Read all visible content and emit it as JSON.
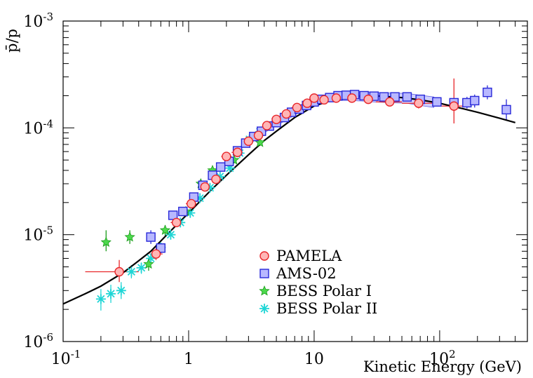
{
  "chart_data": {
    "type": "scatter",
    "title": "",
    "xlabel": "Kinetic Energy (GeV)",
    "ylabel": "p̄/p",
    "x_scale": "log",
    "y_scale": "log",
    "xlim": [
      0.1,
      500
    ],
    "ylim": [
      1e-06,
      0.001
    ],
    "grid": false,
    "legend_position": "lower-center",
    "x_ticks": [
      {
        "value": 0.1,
        "label": "10",
        "exp": "-1"
      },
      {
        "value": 1,
        "label": "1",
        "exp": ""
      },
      {
        "value": 10,
        "label": "10",
        "exp": ""
      },
      {
        "value": 100,
        "label": "10",
        "exp": "2"
      }
    ],
    "y_ticks": [
      {
        "value": 1e-06,
        "label": "10",
        "exp": "-6"
      },
      {
        "value": 1e-05,
        "label": "10",
        "exp": "-5"
      },
      {
        "value": 0.0001,
        "label": "10",
        "exp": "-4"
      },
      {
        "value": 0.001,
        "label": "10",
        "exp": "-3"
      }
    ],
    "model_curve": {
      "color": "#000000",
      "x": [
        0.1,
        0.15,
        0.2,
        0.3,
        0.4,
        0.5,
        0.7,
        1.0,
        1.5,
        2.0,
        3.0,
        4.0,
        5.0,
        7.0,
        10,
        15,
        20,
        30,
        50,
        70,
        100,
        150,
        200,
        300,
        400
      ],
      "y": [
        2.25e-06,
        2.8e-06,
        3.3e-06,
        4.4e-06,
        5.7e-06,
        7e-06,
        1.05e-05,
        1.6e-05,
        2.6e-05,
        3.6e-05,
        5.6e-05,
        7.6e-05,
        9.3e-05,
        0.000125,
        0.00016,
        0.000187,
        0.000197,
        0.0002,
        0.000192,
        0.000183,
        0.00017,
        0.000152,
        0.00014,
        0.000123,
        0.000112
      ]
    },
    "series": [
      {
        "name": "PAMELA",
        "marker": "circle",
        "color": "#e8262a",
        "fill": "#ffb6b6",
        "points": [
          {
            "x": 0.28,
            "y": 4.5e-06,
            "xlo": 0.15,
            "xhi": 0.4,
            "ylo": 3.6e-06,
            "yhi": 5.8e-06
          },
          {
            "x": 0.55,
            "y": 6.6e-06,
            "xlo": 0.49,
            "xhi": 0.62,
            "ylo": 5.8e-06,
            "yhi": 7.6e-06
          },
          {
            "x": 0.8,
            "y": 1.3e-05,
            "xlo": 0.72,
            "xhi": 0.88,
            "ylo": 1.18e-05,
            "yhi": 1.43e-05
          },
          {
            "x": 1.05,
            "y": 1.95e-05,
            "xlo": 0.95,
            "xhi": 1.15,
            "ylo": 1.8e-05,
            "yhi": 2.1e-05
          },
          {
            "x": 1.35,
            "y": 2.8e-05,
            "xlo": 1.22,
            "xhi": 1.5,
            "ylo": 2.6e-05,
            "yhi": 3e-05
          },
          {
            "x": 1.65,
            "y": 3.3e-05,
            "xlo": 1.5,
            "xhi": 1.82,
            "ylo": 3.1e-05,
            "yhi": 3.5e-05
          },
          {
            "x": 2.0,
            "y": 5.4e-05,
            "xlo": 1.82,
            "xhi": 2.2,
            "ylo": 5e-05,
            "yhi": 5.8e-05
          },
          {
            "x": 2.45,
            "y": 5.9e-05,
            "xlo": 2.2,
            "xhi": 2.7,
            "ylo": 5.5e-05,
            "yhi": 6.3e-05
          },
          {
            "x": 3.0,
            "y": 7.5e-05,
            "xlo": 2.7,
            "xhi": 3.3,
            "ylo": 7.1e-05,
            "yhi": 7.9e-05
          },
          {
            "x": 3.6,
            "y": 8.5e-05,
            "xlo": 3.3,
            "xhi": 3.9,
            "ylo": 8.1e-05,
            "yhi": 8.9e-05
          },
          {
            "x": 4.2,
            "y": 0.000105,
            "xlo": 3.9,
            "xhi": 4.6,
            "ylo": 0.0001,
            "yhi": 0.00011
          },
          {
            "x": 5.0,
            "y": 0.00012,
            "xlo": 4.6,
            "xhi": 5.5,
            "ylo": 0.000115,
            "yhi": 0.000125
          },
          {
            "x": 6.0,
            "y": 0.000135,
            "xlo": 5.5,
            "xhi": 6.6,
            "ylo": 0.000129,
            "yhi": 0.000141
          },
          {
            "x": 7.3,
            "y": 0.000155,
            "xlo": 6.6,
            "xhi": 8.0,
            "ylo": 0.000148,
            "yhi": 0.000162
          },
          {
            "x": 8.8,
            "y": 0.00017,
            "xlo": 8.0,
            "xhi": 9.7,
            "ylo": 0.000162,
            "yhi": 0.000178
          },
          {
            "x": 10.0,
            "y": 0.00019,
            "xlo": 9.7,
            "xhi": 10.8,
            "ylo": 0.000182,
            "yhi": 0.000198
          },
          {
            "x": 12.0,
            "y": 0.000183,
            "xlo": 10.8,
            "xhi": 13.5,
            "ylo": 0.000174,
            "yhi": 0.000192
          },
          {
            "x": 15.0,
            "y": 0.00019,
            "xlo": 13.5,
            "xhi": 17.0,
            "ylo": 0.00018,
            "yhi": 0.0002
          },
          {
            "x": 20.0,
            "y": 0.00019,
            "xlo": 17.0,
            "xhi": 23.0,
            "ylo": 0.000179,
            "yhi": 0.000201
          },
          {
            "x": 27.0,
            "y": 0.000185,
            "xlo": 23.0,
            "xhi": 31.0,
            "ylo": 0.000173,
            "yhi": 0.000197
          },
          {
            "x": 40.0,
            "y": 0.000175,
            "xlo": 31.0,
            "xhi": 50.0,
            "ylo": 0.000162,
            "yhi": 0.000189
          },
          {
            "x": 68.0,
            "y": 0.00017,
            "xlo": 50.0,
            "xhi": 90.0,
            "ylo": 0.000152,
            "yhi": 0.00019
          },
          {
            "x": 130.0,
            "y": 0.00016,
            "xlo": 100.0,
            "xhi": 170.0,
            "ylo": 0.00011,
            "yhi": 0.00029
          }
        ]
      },
      {
        "name": "AMS-02",
        "marker": "square",
        "color": "#2828d8",
        "fill": "#b8b8ff",
        "points": [
          {
            "x": 0.5,
            "y": 9.5e-06,
            "ylo": 8.2e-06,
            "yhi": 1.1e-05
          },
          {
            "x": 0.6,
            "y": 7.5e-06,
            "ylo": 6.7e-06,
            "yhi": 8.4e-06
          },
          {
            "x": 0.75,
            "y": 1.52e-05,
            "ylo": 1.4e-05,
            "yhi": 1.65e-05
          },
          {
            "x": 0.9,
            "y": 1.65e-05,
            "ylo": 1.53e-05,
            "yhi": 1.77e-05
          },
          {
            "x": 1.1,
            "y": 2.25e-05,
            "ylo": 2.12e-05,
            "yhi": 2.38e-05
          },
          {
            "x": 1.3,
            "y": 2.9e-05,
            "ylo": 2.75e-05,
            "yhi": 3.05e-05
          },
          {
            "x": 1.55,
            "y": 3.6e-05,
            "ylo": 3.45e-05,
            "yhi": 3.75e-05
          },
          {
            "x": 1.8,
            "y": 4.3e-05,
            "ylo": 4.15e-05,
            "yhi": 4.45e-05
          },
          {
            "x": 2.1,
            "y": 4.85e-05,
            "ylo": 4.7e-05,
            "yhi": 5e-05
          },
          {
            "x": 2.45,
            "y": 6.1e-05,
            "ylo": 5.9e-05,
            "yhi": 6.3e-05
          },
          {
            "x": 2.85,
            "y": 7.2e-05,
            "ylo": 7e-05,
            "yhi": 7.4e-05
          },
          {
            "x": 3.3,
            "y": 8.3e-05,
            "ylo": 8.1e-05,
            "yhi": 8.5e-05
          },
          {
            "x": 3.8,
            "y": 9.3e-05,
            "ylo": 9.1e-05,
            "yhi": 9.5e-05
          },
          {
            "x": 4.4,
            "y": 0.000104,
            "ylo": 0.000102,
            "yhi": 0.000106
          },
          {
            "x": 5.0,
            "y": 0.000112,
            "ylo": 0.00011,
            "yhi": 0.000114
          },
          {
            "x": 5.8,
            "y": 0.000125,
            "ylo": 0.000122,
            "yhi": 0.000128
          },
          {
            "x": 6.6,
            "y": 0.00014,
            "ylo": 0.000137,
            "yhi": 0.000143
          },
          {
            "x": 7.6,
            "y": 0.00015,
            "ylo": 0.000147,
            "yhi": 0.000153
          },
          {
            "x": 8.7,
            "y": 0.000162,
            "ylo": 0.000158,
            "yhi": 0.000166
          },
          {
            "x": 10.0,
            "y": 0.000175,
            "ylo": 0.000171,
            "yhi": 0.000179
          },
          {
            "x": 11.5,
            "y": 0.000185,
            "ylo": 0.000181,
            "yhi": 0.000189
          },
          {
            "x": 13.3,
            "y": 0.000192,
            "ylo": 0.000187,
            "yhi": 0.000197
          },
          {
            "x": 15.5,
            "y": 0.0002,
            "ylo": 0.000195,
            "yhi": 0.000205
          },
          {
            "x": 18.0,
            "y": 0.000202,
            "ylo": 0.000196,
            "yhi": 0.000208
          },
          {
            "x": 21.0,
            "y": 0.000205,
            "ylo": 0.000198,
            "yhi": 0.000212
          },
          {
            "x": 25.0,
            "y": 0.0002,
            "ylo": 0.000193,
            "yhi": 0.000207
          },
          {
            "x": 30.0,
            "y": 0.000198,
            "ylo": 0.00019,
            "yhi": 0.000206
          },
          {
            "x": 36.0,
            "y": 0.000195,
            "ylo": 0.000186,
            "yhi": 0.000204
          },
          {
            "x": 44.0,
            "y": 0.000195,
            "ylo": 0.000185,
            "yhi": 0.000205
          },
          {
            "x": 55.0,
            "y": 0.000195,
            "ylo": 0.000183,
            "yhi": 0.000207
          },
          {
            "x": 70.0,
            "y": 0.000185,
            "ylo": 0.000172,
            "yhi": 0.000198
          },
          {
            "x": 95.0,
            "y": 0.000175,
            "ylo": 0.00016,
            "yhi": 0.00019
          },
          {
            "x": 130.0,
            "y": 0.000172,
            "ylo": 0.000155,
            "yhi": 0.00019
          },
          {
            "x": 165.0,
            "y": 0.000172,
            "ylo": 0.000152,
            "yhi": 0.000195
          },
          {
            "x": 190.0,
            "y": 0.00018,
            "ylo": 0.000155,
            "yhi": 0.000205
          },
          {
            "x": 240.0,
            "y": 0.000215,
            "ylo": 0.000185,
            "yhi": 0.00025
          },
          {
            "x": 340.0,
            "y": 0.000148,
            "ylo": 0.000118,
            "yhi": 0.000185
          }
        ]
      },
      {
        "name": "BESS Polar I",
        "marker": "star",
        "color": "#1a9c1a",
        "fill": "#4cd94c",
        "points": [
          {
            "x": 0.22,
            "y": 8.5e-06,
            "ylo": 7e-06,
            "yhi": 1.1e-05
          },
          {
            "x": 0.34,
            "y": 9.5e-06,
            "ylo": 8.2e-06,
            "yhi": 1.1e-05
          },
          {
            "x": 0.48,
            "y": 5.3e-06,
            "ylo": 4.6e-06,
            "yhi": 6.1e-06
          },
          {
            "x": 0.65,
            "y": 1.1e-05,
            "ylo": 9.8e-06,
            "yhi": 1.23e-05
          },
          {
            "x": 0.95,
            "y": 1.65e-05,
            "ylo": 1.5e-05,
            "yhi": 1.82e-05
          },
          {
            "x": 1.25,
            "y": 3e-05,
            "ylo": 2.75e-05,
            "yhi": 3.3e-05
          },
          {
            "x": 1.55,
            "y": 4e-05,
            "ylo": 3.7e-05,
            "yhi": 4.35e-05
          },
          {
            "x": 2.3,
            "y": 5e-05,
            "ylo": 4.65e-05,
            "yhi": 5.4e-05
          },
          {
            "x": 3.7,
            "y": 7.3e-05,
            "ylo": 6.8e-05,
            "yhi": 7.9e-05
          }
        ]
      },
      {
        "name": "BESS Polar II",
        "marker": "asterisk",
        "color": "#1fd6d6",
        "fill": "#1fd6d6",
        "points": [
          {
            "x": 0.2,
            "y": 2.5e-06,
            "ylo": 1.95e-06,
            "yhi": 3.1e-06
          },
          {
            "x": 0.24,
            "y": 2.8e-06,
            "ylo": 2.3e-06,
            "yhi": 3.4e-06
          },
          {
            "x": 0.29,
            "y": 3e-06,
            "ylo": 2.5e-06,
            "yhi": 3.6e-06
          },
          {
            "x": 0.35,
            "y": 4.5e-06,
            "ylo": 3.9e-06,
            "yhi": 5.2e-06
          },
          {
            "x": 0.42,
            "y": 4.9e-06,
            "ylo": 4.3e-06,
            "yhi": 5.5e-06
          },
          {
            "x": 0.5,
            "y": 6e-06,
            "ylo": 5.4e-06,
            "yhi": 6.7e-06
          },
          {
            "x": 0.6,
            "y": 7.6e-06,
            "ylo": 7e-06,
            "yhi": 8.3e-06
          },
          {
            "x": 0.72,
            "y": 1e-05,
            "ylo": 9.3e-06,
            "yhi": 1.08e-05
          },
          {
            "x": 0.86,
            "y": 1.3e-05,
            "ylo": 1.22e-05,
            "yhi": 1.39e-05
          },
          {
            "x": 1.03,
            "y": 1.6e-05,
            "ylo": 1.5e-05,
            "yhi": 1.7e-05
          },
          {
            "x": 1.23,
            "y": 2.2e-05,
            "ylo": 2.08e-05,
            "yhi": 2.33e-05
          },
          {
            "x": 1.48,
            "y": 2.75e-05,
            "ylo": 2.6e-05,
            "yhi": 2.9e-05
          },
          {
            "x": 1.78,
            "y": 3.5e-05,
            "ylo": 3.32e-05,
            "yhi": 3.7e-05
          },
          {
            "x": 2.13,
            "y": 4.2e-05,
            "ylo": 3.98e-05,
            "yhi": 4.43e-05
          },
          {
            "x": 2.55,
            "y": 5.8e-05,
            "ylo": 5.5e-05,
            "yhi": 6.1e-05
          },
          {
            "x": 3.05,
            "y": 7.8e-05,
            "ylo": 7.4e-05,
            "yhi": 8.2e-05
          },
          {
            "x": 3.7,
            "y": 9.2e-05,
            "ylo": 8.7e-05,
            "yhi": 9.7e-05
          }
        ]
      }
    ],
    "ams_syst_band": {
      "x": [
        3.0,
        4.0,
        5.0,
        6.5,
        8.0,
        10,
        13,
        16,
        20,
        25,
        30,
        40,
        55,
        70,
        90
      ],
      "ylo": [
        7e-05,
        9e-05,
        0.000105,
        0.000125,
        0.000145,
        0.00016,
        0.000175,
        0.00018,
        0.00018,
        0.000178,
        0.000175,
        0.000172,
        0.00017,
        0.000162,
        0.000155
      ],
      "yhi": [
        8.2e-05,
        0.000102,
        0.00012,
        0.000142,
        0.000165,
        0.000188,
        0.000205,
        0.000215,
        0.00022,
        0.000218,
        0.000215,
        0.000212,
        0.00021,
        0.000202,
        0.000195
      ]
    }
  }
}
